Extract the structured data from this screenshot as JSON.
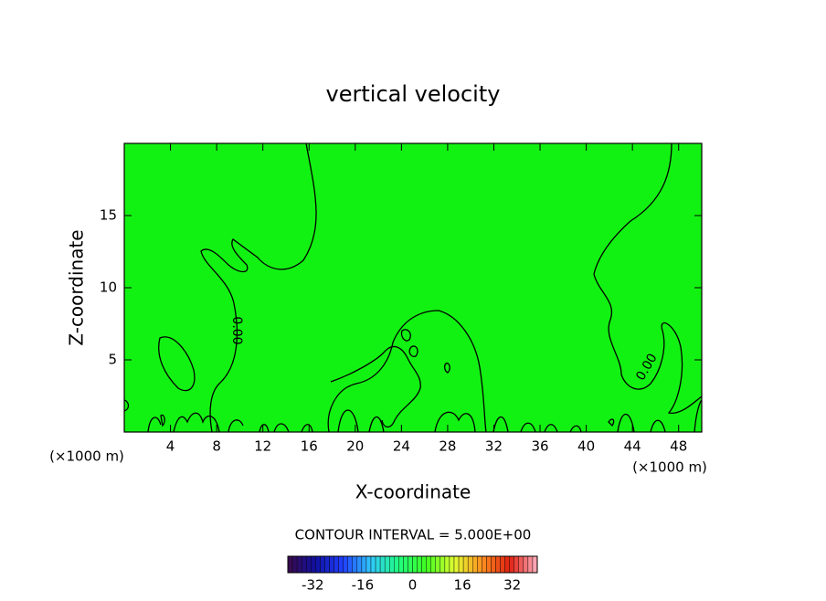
{
  "chart_data": {
    "type": "contour",
    "title": "vertical velocity",
    "x_label": "X-coordinate",
    "y_label": "Z-coordinate",
    "x_unit": "(×1000 m)",
    "y_unit": "(×1000 m)",
    "xlim": [
      0,
      50
    ],
    "xticks": [
      4,
      8,
      12,
      16,
      20,
      24,
      28,
      32,
      36,
      40,
      44,
      48
    ],
    "ylim": [
      0,
      20
    ],
    "yticks": [
      5,
      10,
      15
    ],
    "fill_color": "#12f212",
    "contours": [
      {
        "level": 0,
        "label": "0.00"
      }
    ],
    "contour_interval_text": "CONTOUR INTERVAL = 5.000E+00",
    "colorbar": {
      "lim": [
        -40,
        40
      ],
      "ticks": [
        -32,
        -16,
        0,
        16,
        32
      ],
      "colormap": [
        "#3a0a4a",
        "#1010a0",
        "#2040ff",
        "#30c8ff",
        "#20ff80",
        "#40ff20",
        "#e0ff30",
        "#ff9020",
        "#e02010",
        "#ffb0c0"
      ]
    }
  }
}
